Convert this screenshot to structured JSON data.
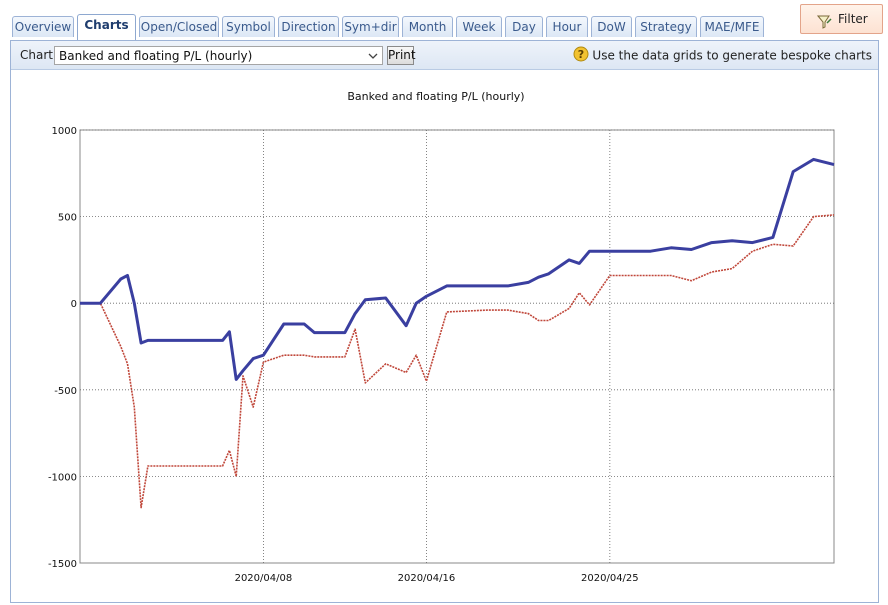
{
  "tabs": [
    {
      "label": "Overview",
      "active": false
    },
    {
      "label": "Charts",
      "active": true
    },
    {
      "label": "Open/Closed",
      "active": false
    },
    {
      "label": "Symbol",
      "active": false
    },
    {
      "label": "Direction",
      "active": false
    },
    {
      "label": "Sym+dir",
      "active": false
    },
    {
      "label": "Month",
      "active": false
    },
    {
      "label": "Week",
      "active": false
    },
    {
      "label": "Day",
      "active": false
    },
    {
      "label": "Hour",
      "active": false
    },
    {
      "label": "DoW",
      "active": false
    },
    {
      "label": "Strategy",
      "active": false
    },
    {
      "label": "MAE/MFE",
      "active": false
    }
  ],
  "filter": {
    "label": "Filter",
    "icon": "filter-funnel-icon"
  },
  "toolbar": {
    "chart_label": "Chart:",
    "selected_chart": "Banked and floating P/L (hourly)",
    "print_label": "Print",
    "hint": "Use the data grids to generate bespoke charts",
    "hint_icon": "help-question-icon"
  },
  "colors": {
    "banked": "#3a3fa0",
    "floating": "#c0473a",
    "accent": "#9db3d6",
    "filter_border": "#e3a48a"
  },
  "chart_data": {
    "type": "line",
    "title": "Banked and floating P/L (hourly)",
    "xlabel": "",
    "ylabel": "",
    "ylim": [
      -1500,
      1000
    ],
    "yticks": [
      1000,
      500,
      0,
      -500,
      -1000,
      -1500
    ],
    "xrange": [
      "2020-03-30",
      "2020-05-06"
    ],
    "xticks": [
      {
        "label": "2020/04/08",
        "x": "2020-04-08"
      },
      {
        "label": "2020/04/16",
        "x": "2020-04-16"
      },
      {
        "label": "2020/04/25",
        "x": "2020-04-25"
      }
    ],
    "grid": true,
    "series": [
      {
        "style": "banked",
        "x": [
          "2020-03-30",
          "2020-03-31",
          "2020-04-01",
          "2020-04-01",
          "2020-04-01",
          "2020-04-02",
          "2020-04-02",
          "2020-04-02",
          "2020-04-03",
          "2020-04-05",
          "2020-04-06",
          "2020-04-06",
          "2020-04-06",
          "2020-04-07",
          "2020-04-07",
          "2020-04-08",
          "2020-04-09",
          "2020-04-10",
          "2020-04-10",
          "2020-04-11",
          "2020-04-12",
          "2020-04-12",
          "2020-04-13",
          "2020-04-14",
          "2020-04-15",
          "2020-04-15",
          "2020-04-16",
          "2020-04-17",
          "2020-04-19",
          "2020-04-20",
          "2020-04-21",
          "2020-04-21",
          "2020-04-22",
          "2020-04-23",
          "2020-04-23",
          "2020-04-24",
          "2020-04-25",
          "2020-04-26",
          "2020-04-27",
          "2020-04-28",
          "2020-04-29",
          "2020-04-30",
          "2020-05-01",
          "2020-05-02",
          "2020-05-03",
          "2020-05-04",
          "2020-05-05",
          "2020-05-06"
        ],
        "y": [
          0,
          0,
          140,
          160,
          0,
          -230,
          -215,
          -215,
          -215,
          -215,
          -215,
          -165,
          -440,
          -390,
          -320,
          -300,
          -120,
          -120,
          -170,
          -170,
          -170,
          -60,
          20,
          30,
          -130,
          0,
          40,
          100,
          100,
          100,
          120,
          150,
          170,
          250,
          230,
          300,
          300,
          300,
          300,
          320,
          310,
          350,
          360,
          350,
          380,
          760,
          830,
          800
        ]
      },
      {
        "style": "floating",
        "x": [
          "2020-03-30",
          "2020-03-31",
          "2020-04-01",
          "2020-04-01",
          "2020-04-01",
          "2020-04-02",
          "2020-04-02",
          "2020-04-02",
          "2020-04-03",
          "2020-04-05",
          "2020-04-06",
          "2020-04-06",
          "2020-04-06",
          "2020-04-07",
          "2020-04-07",
          "2020-04-08",
          "2020-04-09",
          "2020-04-10",
          "2020-04-10",
          "2020-04-11",
          "2020-04-12",
          "2020-04-12",
          "2020-04-13",
          "2020-04-14",
          "2020-04-15",
          "2020-04-15",
          "2020-04-16",
          "2020-04-17",
          "2020-04-19",
          "2020-04-20",
          "2020-04-21",
          "2020-04-21",
          "2020-04-22",
          "2020-04-23",
          "2020-04-23",
          "2020-04-24",
          "2020-04-25",
          "2020-04-26",
          "2020-04-27",
          "2020-04-28",
          "2020-04-29",
          "2020-04-30",
          "2020-05-01",
          "2020-05-02",
          "2020-05-03",
          "2020-05-04",
          "2020-05-05",
          "2020-05-06"
        ],
        "y": [
          0,
          0,
          -250,
          -350,
          -600,
          -1180,
          -940,
          -940,
          -940,
          -940,
          -940,
          -850,
          -1000,
          -420,
          -600,
          -340,
          -300,
          -300,
          -310,
          -310,
          -310,
          -150,
          -460,
          -350,
          -400,
          -300,
          -450,
          -50,
          -40,
          -40,
          -60,
          -100,
          -100,
          -30,
          60,
          -10,
          160,
          160,
          160,
          160,
          130,
          180,
          200,
          300,
          340,
          330,
          500,
          510
        ]
      }
    ]
  }
}
